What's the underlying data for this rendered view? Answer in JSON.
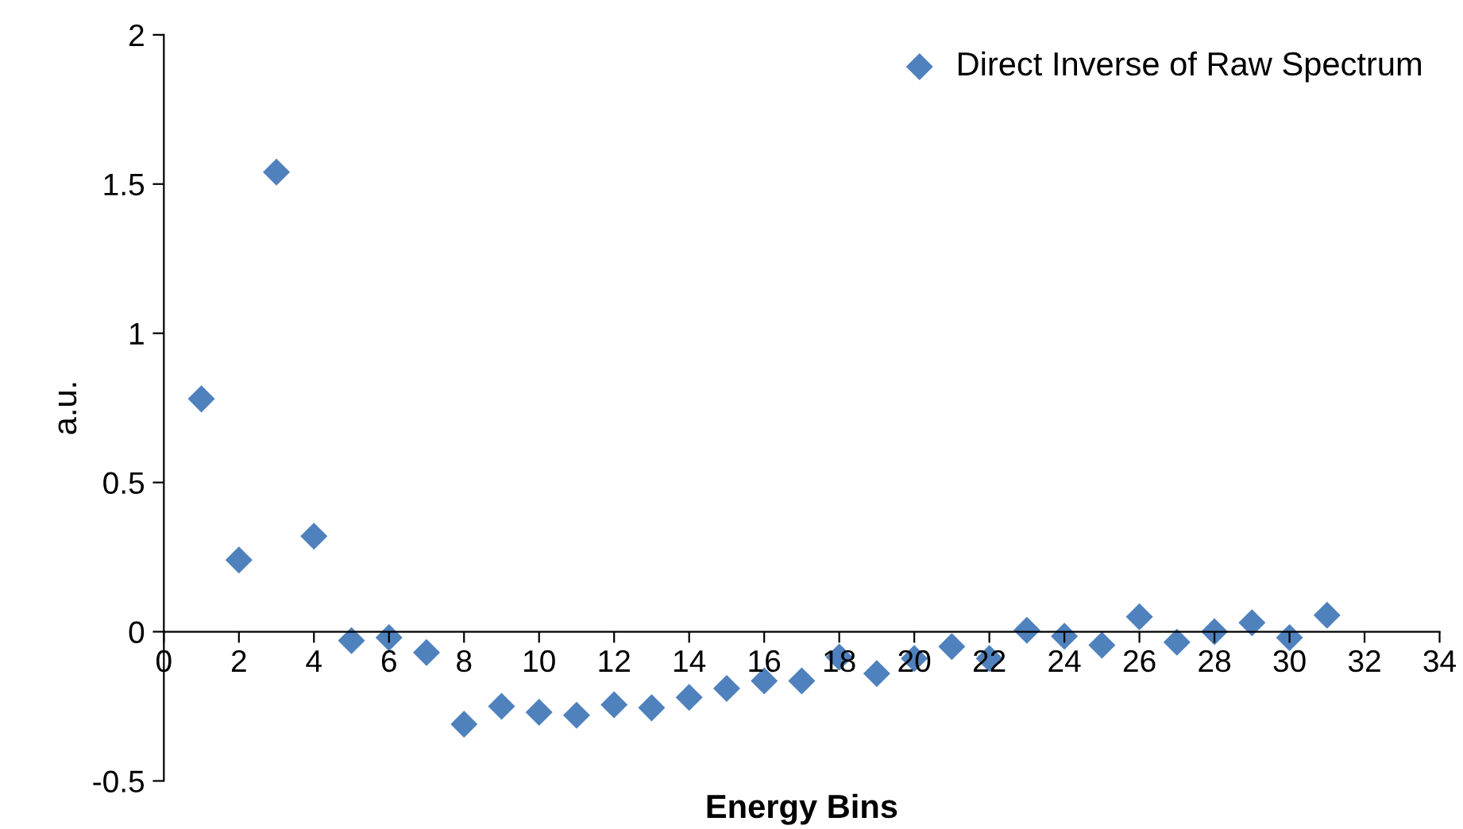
{
  "chart_data": {
    "type": "scatter",
    "xlabel": "Energy Bins",
    "ylabel": "a.u.",
    "x": [
      1,
      2,
      3,
      4,
      5,
      6,
      7,
      8,
      9,
      10,
      11,
      12,
      13,
      14,
      15,
      16,
      17,
      18,
      19,
      20,
      21,
      22,
      23,
      24,
      25,
      26,
      27,
      28,
      29,
      30,
      31
    ],
    "series": [
      {
        "name": "Direct Inverse of Raw Spectrum",
        "color": "#4f81bd",
        "values": [
          0.78,
          0.24,
          1.54,
          0.32,
          -0.03,
          -0.02,
          -0.07,
          -0.31,
          -0.25,
          -0.27,
          -0.28,
          -0.245,
          -0.255,
          -0.22,
          -0.19,
          -0.165,
          -0.165,
          -0.085,
          -0.14,
          -0.09,
          -0.05,
          -0.09,
          0.005,
          -0.015,
          -0.045,
          0.05,
          -0.035,
          0,
          0.03,
          -0.02,
          0.055
        ]
      }
    ],
    "xlim": [
      0,
      34
    ],
    "xticks": [
      0,
      2,
      4,
      6,
      8,
      10,
      12,
      14,
      16,
      18,
      20,
      22,
      24,
      26,
      28,
      30,
      32,
      34
    ],
    "ylim": [
      -0.5,
      2
    ],
    "yticks": [
      -0.5,
      0,
      0.5,
      1,
      1.5,
      2
    ],
    "marker": "diamond",
    "legend": "top right",
    "grid": false
  }
}
